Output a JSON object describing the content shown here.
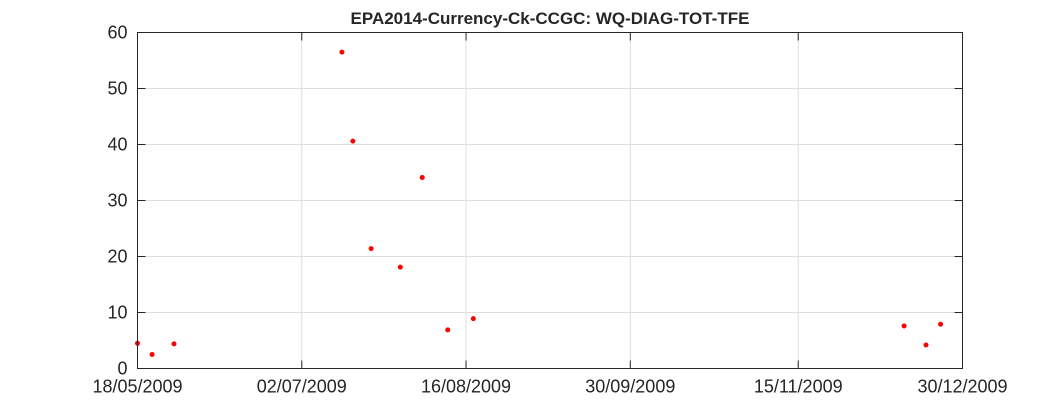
{
  "chart_data": {
    "type": "scatter",
    "title": "EPA2014-Currency-Ck-CCGC: WQ-DIAG-TOT-TFE",
    "xlabel": "",
    "ylabel": "",
    "xlim": [
      "2009-05-18",
      "2009-12-30"
    ],
    "ylim": [
      0,
      60
    ],
    "x_ticks": [
      "18/05/2009",
      "02/07/2009",
      "16/08/2009",
      "30/09/2009",
      "15/11/2009",
      "30/12/2009"
    ],
    "y_ticks": [
      0,
      10,
      20,
      30,
      40,
      50,
      60
    ],
    "grid": true,
    "marker_color": "#ff0000",
    "x": [
      "2009-05-18",
      "2009-05-22",
      "2009-05-28",
      "2009-07-13",
      "2009-07-16",
      "2009-07-21",
      "2009-07-29",
      "2009-08-04",
      "2009-08-11",
      "2009-08-18",
      "2009-12-14",
      "2009-12-20",
      "2009-12-24"
    ],
    "y": [
      4.5,
      2.5,
      4.4,
      56.5,
      40.6,
      21.4,
      18.1,
      34.1,
      6.9,
      8.9,
      7.6,
      4.2,
      7.9
    ]
  }
}
